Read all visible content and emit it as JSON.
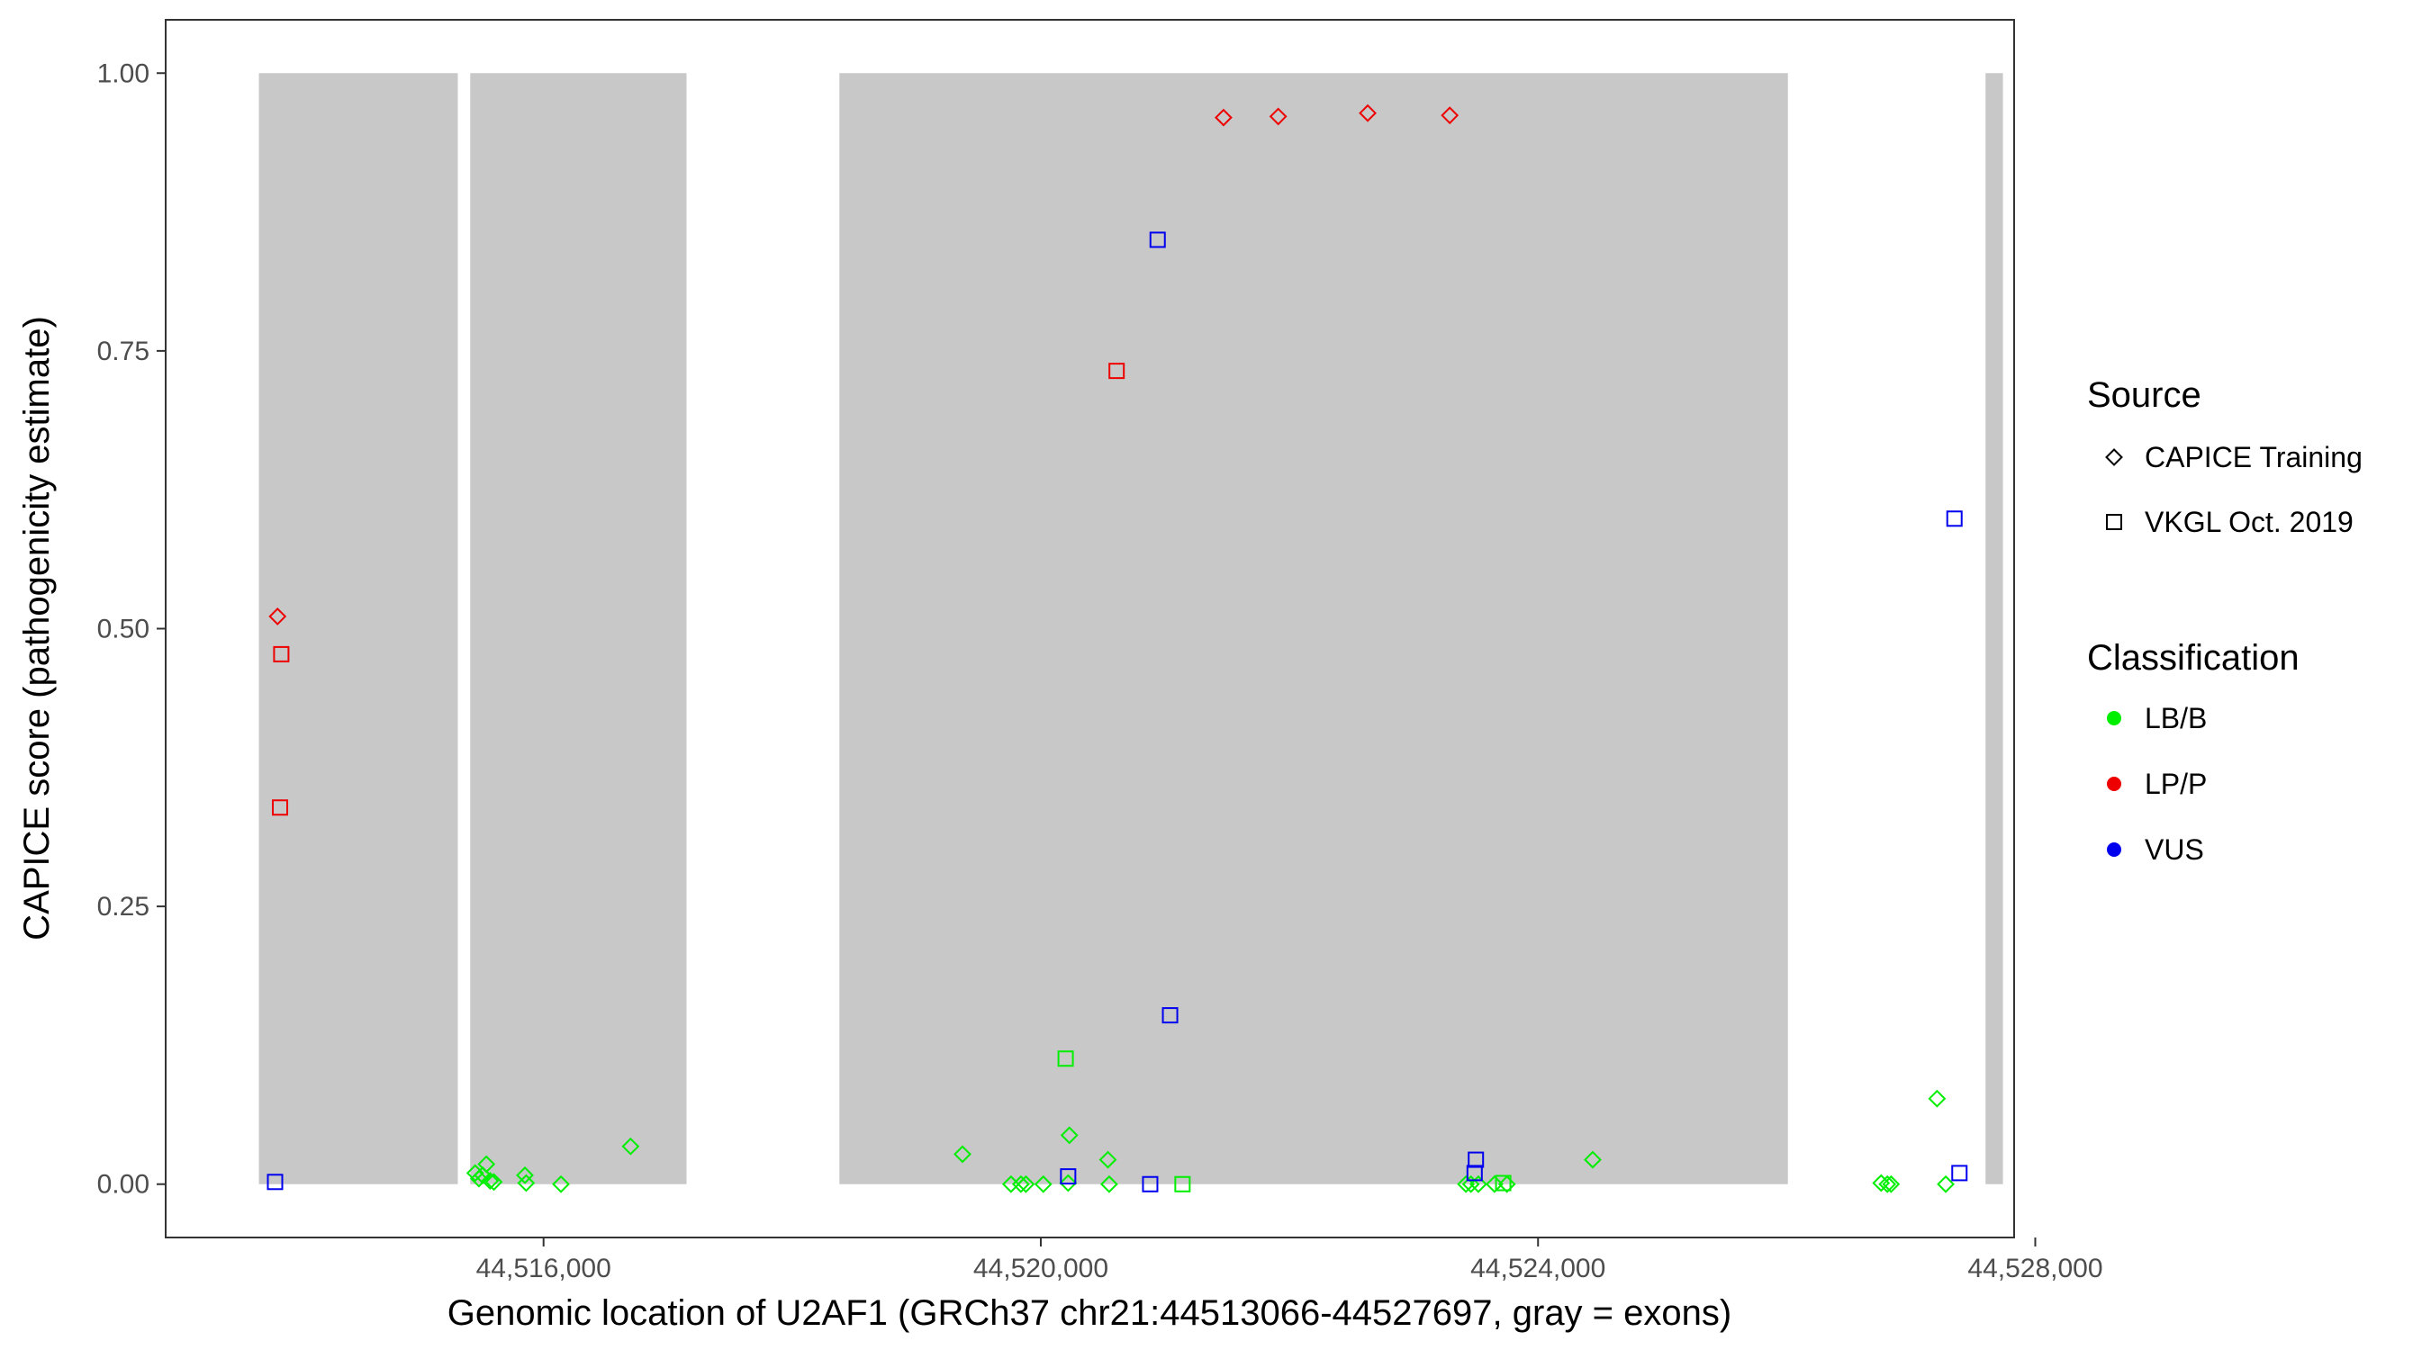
{
  "chart_data": {
    "type": "scatter",
    "xlabel": "Genomic location of U2AF1 (GRCh37 chr21:44513066-44527697, gray = exons)",
    "ylabel": "CAPICE score (pathogenicity estimate)",
    "xlim": [
      44512960,
      44527830
    ],
    "ylim": [
      -0.048,
      1.048
    ],
    "x_ticks": [
      {
        "value": 44516000,
        "label": "44,516,000"
      },
      {
        "value": 44520000,
        "label": "44,520,000"
      },
      {
        "value": 44524000,
        "label": "44,524,000"
      },
      {
        "value": 44528000,
        "label": "44,528,000"
      }
    ],
    "y_ticks": [
      {
        "value": 0,
        "label": "0.00"
      },
      {
        "value": 0.25,
        "label": "0.25"
      },
      {
        "value": 0.5,
        "label": "0.50"
      },
      {
        "value": 0.75,
        "label": "0.75"
      },
      {
        "value": 1,
        "label": "1.00"
      }
    ],
    "grid": false,
    "exons": [
      {
        "start": 44513710,
        "end": 44515310
      },
      {
        "start": 44515410,
        "end": 44517150
      },
      {
        "start": 44518380,
        "end": 44526010
      },
      {
        "start": 44527600,
        "end": 44527740
      }
    ],
    "colors": {
      "LB/B": "#00ee00",
      "LP/P": "#ee0000",
      "VUS": "#0000ee",
      "exon": "#c8c8c8"
    },
    "legend": {
      "position": "right",
      "source_title": "Source",
      "source_items": [
        {
          "label": "CAPICE Training",
          "shape": "diamond"
        },
        {
          "label": "VKGL Oct. 2019",
          "shape": "square"
        }
      ],
      "class_title": "Classification",
      "class_items": [
        {
          "label": "LB/B",
          "color": "#00ee00"
        },
        {
          "label": "LP/P",
          "color": "#ee0000"
        },
        {
          "label": "VUS",
          "color": "#0000ee"
        }
      ]
    },
    "series": [
      {
        "name": "CAPICE Training",
        "shape": "diamond",
        "points": [
          {
            "x": 44513860,
            "y": 0.511,
            "cls": "LP/P"
          },
          {
            "x": 44521470,
            "y": 0.96,
            "cls": "LP/P"
          },
          {
            "x": 44521910,
            "y": 0.961,
            "cls": "LP/P"
          },
          {
            "x": 44522630,
            "y": 0.964,
            "cls": "LP/P"
          },
          {
            "x": 44523290,
            "y": 0.962,
            "cls": "LP/P"
          },
          {
            "x": 44515450,
            "y": 0.01,
            "cls": "LB/B"
          },
          {
            "x": 44515480,
            "y": 0.005,
            "cls": "LB/B"
          },
          {
            "x": 44515510,
            "y": 0.008,
            "cls": "LB/B"
          },
          {
            "x": 44515540,
            "y": 0.018,
            "cls": "LB/B"
          },
          {
            "x": 44515570,
            "y": 0.003,
            "cls": "LB/B"
          },
          {
            "x": 44515600,
            "y": 0.002,
            "cls": "LB/B"
          },
          {
            "x": 44515850,
            "y": 0.008,
            "cls": "LB/B"
          },
          {
            "x": 44515860,
            "y": 0.001,
            "cls": "LB/B"
          },
          {
            "x": 44516140,
            "y": 0.0,
            "cls": "LB/B"
          },
          {
            "x": 44516700,
            "y": 0.034,
            "cls": "LB/B"
          },
          {
            "x": 44519370,
            "y": 0.027,
            "cls": "LB/B"
          },
          {
            "x": 44519760,
            "y": 0.0,
            "cls": "LB/B"
          },
          {
            "x": 44519840,
            "y": 0.0,
            "cls": "LB/B"
          },
          {
            "x": 44519880,
            "y": 0.0,
            "cls": "LB/B"
          },
          {
            "x": 44520020,
            "y": 0.0,
            "cls": "LB/B"
          },
          {
            "x": 44520230,
            "y": 0.044,
            "cls": "LB/B"
          },
          {
            "x": 44520220,
            "y": 0.001,
            "cls": "LB/B"
          },
          {
            "x": 44520540,
            "y": 0.022,
            "cls": "LB/B"
          },
          {
            "x": 44520550,
            "y": 0.0,
            "cls": "LB/B"
          },
          {
            "x": 44523420,
            "y": 0.0,
            "cls": "LB/B"
          },
          {
            "x": 44523460,
            "y": 0.0,
            "cls": "LB/B"
          },
          {
            "x": 44523520,
            "y": 0.0,
            "cls": "LB/B"
          },
          {
            "x": 44523650,
            "y": 0.0,
            "cls": "LB/B"
          },
          {
            "x": 44523750,
            "y": 0.0,
            "cls": "LB/B"
          },
          {
            "x": 44524440,
            "y": 0.022,
            "cls": "LB/B"
          },
          {
            "x": 44526760,
            "y": 0.001,
            "cls": "LB/B"
          },
          {
            "x": 44526810,
            "y": 0.0,
            "cls": "LB/B"
          },
          {
            "x": 44526840,
            "y": 0.0,
            "cls": "LB/B"
          },
          {
            "x": 44527210,
            "y": 0.077,
            "cls": "LB/B"
          },
          {
            "x": 44527280,
            "y": 0.0,
            "cls": "LB/B"
          }
        ]
      },
      {
        "name": "VKGL Oct. 2019",
        "shape": "square",
        "points": [
          {
            "x": 44513890,
            "y": 0.477,
            "cls": "LP/P"
          },
          {
            "x": 44513880,
            "y": 0.339,
            "cls": "LP/P"
          },
          {
            "x": 44520610,
            "y": 0.732,
            "cls": "LP/P"
          },
          {
            "x": 44513840,
            "y": 0.002,
            "cls": "VUS"
          },
          {
            "x": 44520940,
            "y": 0.85,
            "cls": "VUS"
          },
          {
            "x": 44521040,
            "y": 0.152,
            "cls": "VUS"
          },
          {
            "x": 44520220,
            "y": 0.007,
            "cls": "VUS"
          },
          {
            "x": 44520880,
            "y": 0.0,
            "cls": "VUS"
          },
          {
            "x": 44523500,
            "y": 0.022,
            "cls": "VUS"
          },
          {
            "x": 44523490,
            "y": 0.01,
            "cls": "VUS"
          },
          {
            "x": 44527350,
            "y": 0.599,
            "cls": "VUS"
          },
          {
            "x": 44527390,
            "y": 0.01,
            "cls": "VUS"
          },
          {
            "x": 44520200,
            "y": 0.113,
            "cls": "LB/B"
          },
          {
            "x": 44521140,
            "y": 0.0,
            "cls": "LB/B"
          },
          {
            "x": 44523720,
            "y": 0.001,
            "cls": "LB/B"
          }
        ]
      }
    ]
  }
}
